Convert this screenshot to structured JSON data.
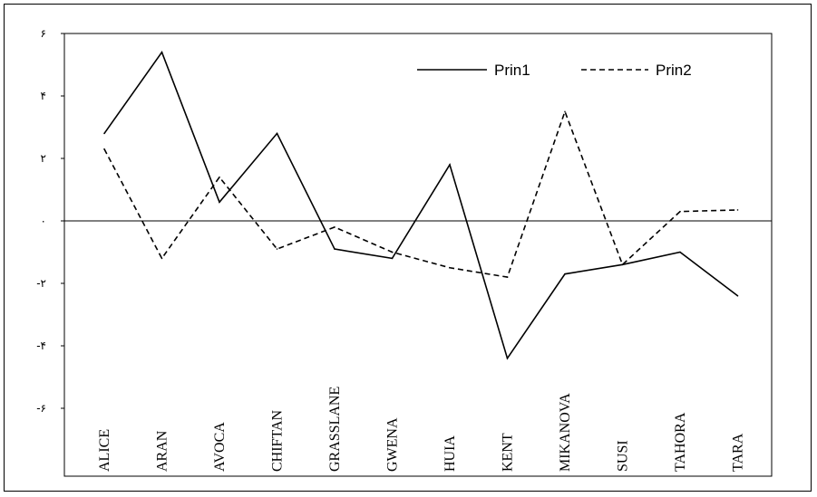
{
  "chart_data": {
    "type": "line",
    "title": "",
    "xlabel": "",
    "ylabel": "",
    "categories": [
      "ALICE",
      "ARAN",
      "AVOCA",
      "CHIFTAN",
      "GRASSLANE",
      "GWENA",
      "HUIA",
      "KENT",
      "MIKANOVA",
      "SUSI",
      "TAHORA",
      "TARA"
    ],
    "yticks": [
      6,
      4,
      2,
      0,
      -2,
      -4,
      -6
    ],
    "ytick_labels": [
      "۶",
      "۴",
      "۲",
      "۰",
      "-۲",
      "-۴",
      "-۶"
    ],
    "ylim": [
      -6.5,
      6
    ],
    "grid": false,
    "zero_line": true,
    "legend_position": "top-right",
    "series": [
      {
        "name": "Prin1",
        "style": "solid",
        "values": [
          2.8,
          5.4,
          0.6,
          2.8,
          -0.9,
          -1.2,
          1.8,
          -4.4,
          -1.7,
          -1.4,
          -1.0,
          -2.4
        ]
      },
      {
        "name": "Prin2",
        "style": "dashed",
        "values": [
          2.3,
          -1.2,
          1.4,
          -0.9,
          -0.2,
          -1.0,
          -1.5,
          -1.8,
          3.5,
          -1.4,
          0.3,
          0.35
        ]
      }
    ]
  }
}
